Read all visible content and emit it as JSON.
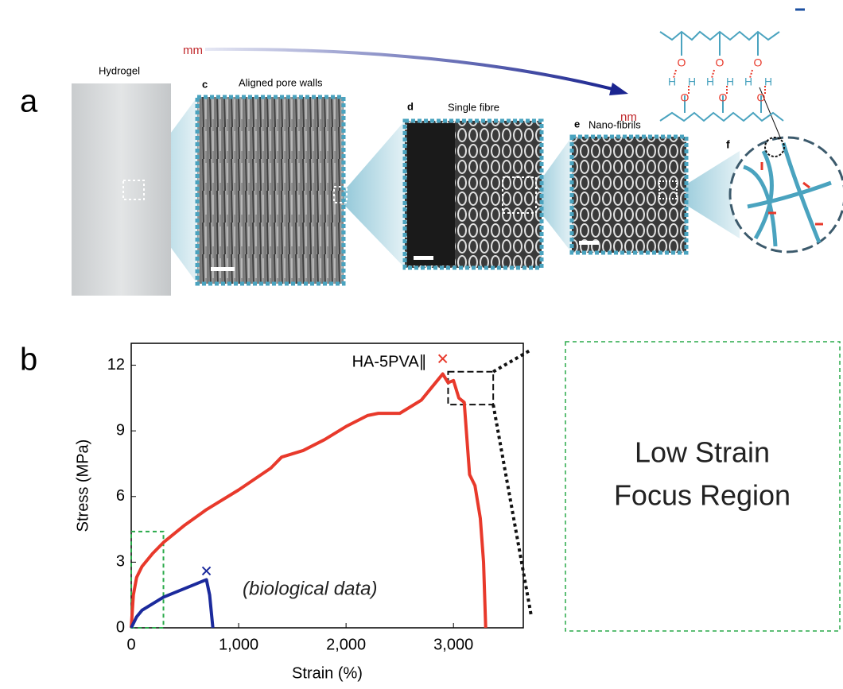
{
  "panel_a": {
    "label": "a",
    "scale_start": "mm",
    "scale_end": "nm",
    "images": [
      {
        "label": "Hydrogel"
      },
      {
        "letter": "c",
        "label": "Aligned pore walls"
      },
      {
        "letter": "d",
        "label": "Single fibre"
      },
      {
        "letter": "e",
        "label": "Nano-fibrils"
      },
      {
        "letter": "f"
      }
    ],
    "molecule_atoms": [
      "O",
      "O",
      "O",
      "H",
      "H",
      "H",
      "H",
      "H",
      "H",
      "O",
      "O",
      "O"
    ]
  },
  "panel_b": {
    "label": "b",
    "inset_lines": [
      "Low Strain",
      "Focus Region"
    ]
  },
  "chart_data": {
    "type": "line",
    "xlabel": "Strain (%)",
    "ylabel": "Stress (MPa)",
    "xlim": [
      0,
      3650
    ],
    "ylim": [
      0,
      13
    ],
    "xticks": [
      0,
      {
        "value": 1000,
        "label": "1,000"
      },
      {
        "value": 2000,
        "label": "2,000"
      },
      {
        "value": 3000,
        "label": "3,000"
      }
    ],
    "yticks": [
      0,
      3,
      6,
      9,
      12
    ],
    "series": [
      {
        "name": "HA-5PVA∥",
        "color": "#e8392b",
        "x": [
          0,
          20,
          50,
          100,
          200,
          300,
          500,
          700,
          1000,
          1300,
          1400,
          1600,
          1800,
          2000,
          2200,
          2300,
          2500,
          2700,
          2800,
          2900,
          2950,
          3000,
          3050,
          3100,
          3150,
          3200,
          3250,
          3280,
          3300
        ],
        "values": [
          0,
          1.5,
          2.3,
          2.8,
          3.4,
          3.9,
          4.7,
          5.4,
          6.3,
          7.3,
          7.8,
          8.1,
          8.6,
          9.2,
          9.7,
          9.8,
          9.8,
          10.4,
          11.0,
          11.6,
          11.2,
          11.3,
          10.5,
          10.3,
          7.0,
          6.5,
          5.0,
          3.0,
          0
        ],
        "break": {
          "x": 2900,
          "y": 12.3
        }
      },
      {
        "color": "#1b2a9c",
        "x": [
          0,
          50,
          100,
          200,
          300,
          400,
          500,
          600,
          700,
          730,
          760
        ],
        "values": [
          0,
          0.5,
          0.8,
          1.1,
          1.4,
          1.6,
          1.8,
          2.0,
          2.2,
          1.5,
          0
        ],
        "break": {
          "x": 700,
          "y": 2.6
        }
      }
    ],
    "annotation": "(biological data)",
    "zoom_region": {
      "xlim": [
        0,
        300
      ],
      "ylim": [
        0,
        4.4
      ]
    },
    "detail_region": {
      "xlim": [
        2950,
        3370
      ],
      "ylim": [
        10.2,
        11.7
      ]
    }
  }
}
